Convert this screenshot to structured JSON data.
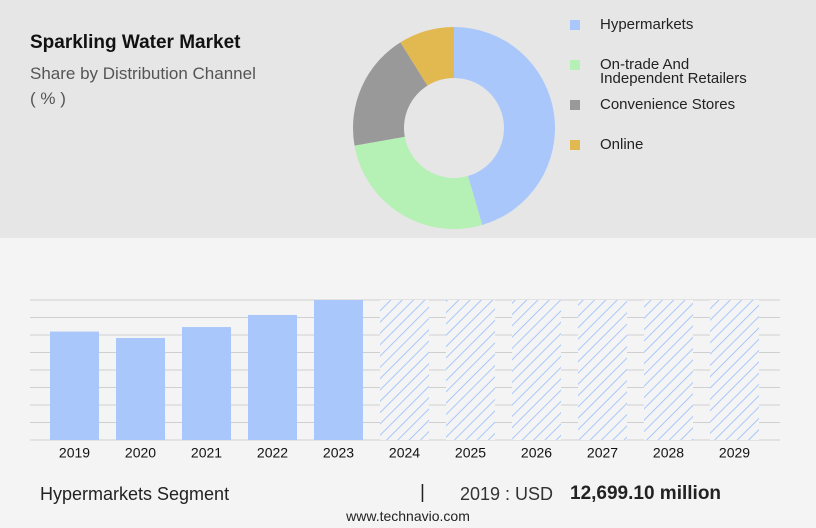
{
  "chart_data": [
    {
      "type": "pie",
      "title": "Sparkling Water Market",
      "subtitle": "Share by Distribution Channel",
      "unit": "( % )",
      "donut": true,
      "legend": "right",
      "categories": [
        "Hypermarkets",
        "On-trade And Independent Retailers",
        "Convenience Stores",
        "Online"
      ],
      "values": [
        45.5,
        26.7,
        18.9,
        8.9
      ],
      "colors": [
        "#a9c7fb",
        "#b5f0b5",
        "#999999",
        "#e2b951"
      ]
    },
    {
      "type": "bar",
      "categories": [
        "2019",
        "2020",
        "2021",
        "2022",
        "2023",
        "2024",
        "2025",
        "2026",
        "2027",
        "2028",
        "2029"
      ],
      "values": [
        12699.1,
        11950,
        13230,
        14650,
        16400,
        null,
        null,
        null,
        null,
        null,
        null
      ],
      "color": "#a9c7fb",
      "ylim": [
        0,
        16400
      ],
      "yticks": [
        0,
        2050,
        4100,
        6150,
        8200,
        10250,
        12300,
        14350,
        16400
      ],
      "grid": true
    }
  ],
  "footer": {
    "segment": "Hypermarkets Segment",
    "separator": "|",
    "prefix": "2019 : USD",
    "value": "12,699.10 million",
    "source": "www.technavio.com"
  }
}
